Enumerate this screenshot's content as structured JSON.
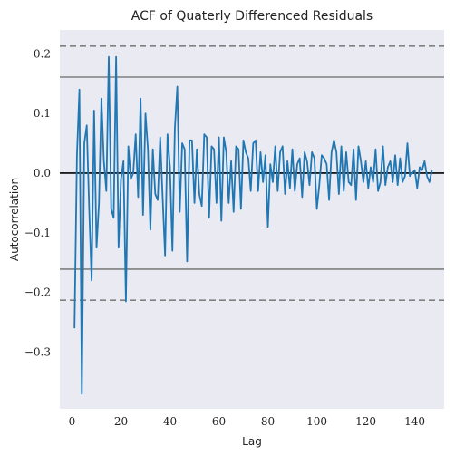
{
  "chart_data": {
    "type": "line",
    "title": "ACF of Quaterly Differenced Residuals",
    "xlabel": "Lag",
    "ylabel": "Autocorrelation",
    "xlim": [
      -5,
      152
    ],
    "ylim": [
      -0.395,
      0.24
    ],
    "x_ticks": [
      0,
      20,
      40,
      60,
      80,
      100,
      120,
      140
    ],
    "x_tick_labels": [
      "0",
      "20",
      "40",
      "60",
      "80",
      "100",
      "120",
      "140"
    ],
    "y_ticks": [
      0.2,
      0.1,
      0.0,
      -0.1,
      -0.2,
      -0.3
    ],
    "y_tick_labels": [
      "0.2",
      "0.1",
      "0.0",
      "−0.1",
      "−0.2",
      "−0.3"
    ],
    "grid": false,
    "confidence_bands": [
      {
        "name": "95% band",
        "value": 0.161,
        "style": "solid",
        "color": "#808080"
      },
      {
        "name": "99% band",
        "value": 0.213,
        "style": "dashed",
        "color": "#808080"
      }
    ],
    "zero_line": {
      "value": 0,
      "color": "#000000"
    },
    "series": [
      {
        "color": "#1f77b4",
        "x": [
          1,
          2,
          3,
          4,
          5,
          6,
          7,
          8,
          9,
          10,
          11,
          12,
          13,
          14,
          15,
          16,
          17,
          18,
          19,
          20,
          21,
          22,
          23,
          24,
          25,
          26,
          27,
          28,
          29,
          30,
          31,
          32,
          33,
          34,
          35,
          36,
          37,
          38,
          39,
          40,
          41,
          42,
          43,
          44,
          45,
          46,
          47,
          48,
          49,
          50,
          51,
          52,
          53,
          54,
          55,
          56,
          57,
          58,
          59,
          60,
          61,
          62,
          63,
          64,
          65,
          66,
          67,
          68,
          69,
          70,
          71,
          72,
          73,
          74,
          75,
          76,
          77,
          78,
          79,
          80,
          81,
          82,
          83,
          84,
          85,
          86,
          87,
          88,
          89,
          90,
          91,
          92,
          93,
          94,
          95,
          96,
          97,
          98,
          99,
          100,
          101,
          102,
          103,
          104,
          105,
          106,
          107,
          108,
          109,
          110,
          111,
          112,
          113,
          114,
          115,
          116,
          117,
          118,
          119,
          120,
          121,
          122,
          123,
          124,
          125,
          126,
          127,
          128,
          129,
          130,
          131,
          132,
          133,
          134,
          135,
          136,
          137,
          138,
          139,
          140,
          141,
          142,
          143,
          144,
          145,
          146,
          147
        ],
        "y": [
          -0.26,
          0.03,
          0.14,
          -0.37,
          0.05,
          0.08,
          -0.06,
          -0.18,
          0.105,
          -0.125,
          -0.05,
          0.125,
          0.02,
          -0.03,
          0.195,
          -0.06,
          -0.075,
          0.195,
          -0.125,
          -0.01,
          0.02,
          -0.215,
          0.045,
          -0.01,
          0.0,
          0.065,
          -0.04,
          0.125,
          -0.07,
          0.1,
          0.04,
          -0.095,
          0.04,
          -0.035,
          -0.045,
          0.06,
          -0.04,
          -0.138,
          0.065,
          0.01,
          -0.13,
          0.075,
          0.145,
          -0.065,
          0.05,
          0.04,
          -0.148,
          0.055,
          0.055,
          -0.05,
          0.04,
          -0.035,
          -0.055,
          0.065,
          0.06,
          -0.075,
          0.045,
          0.04,
          -0.05,
          0.06,
          -0.08,
          0.06,
          0.035,
          -0.05,
          0.02,
          -0.065,
          0.045,
          0.04,
          -0.06,
          0.055,
          0.035,
          0.025,
          -0.03,
          0.05,
          0.055,
          -0.03,
          0.035,
          -0.015,
          0.03,
          -0.09,
          0.015,
          -0.015,
          0.045,
          -0.03,
          0.035,
          0.045,
          -0.035,
          0.02,
          -0.025,
          0.04,
          -0.03,
          0.015,
          0.025,
          -0.04,
          0.035,
          0.02,
          -0.02,
          0.035,
          0.025,
          -0.06,
          -0.02,
          0.03,
          0.025,
          0.015,
          -0.045,
          0.035,
          0.055,
          0.035,
          -0.035,
          0.045,
          -0.03,
          0.035,
          -0.015,
          -0.02,
          0.04,
          -0.045,
          0.045,
          0.02,
          -0.015,
          0.02,
          -0.025,
          0.01,
          -0.015,
          0.04,
          -0.03,
          -0.015,
          0.045,
          -0.02,
          0.01,
          0.02,
          -0.015,
          0.03,
          -0.02,
          0.025,
          -0.015,
          -0.005,
          0.05,
          -0.005,
          0.0,
          0.005,
          -0.025,
          0.01,
          0.005,
          0.02,
          -0.005,
          -0.015,
          0.005
        ]
      }
    ]
  }
}
